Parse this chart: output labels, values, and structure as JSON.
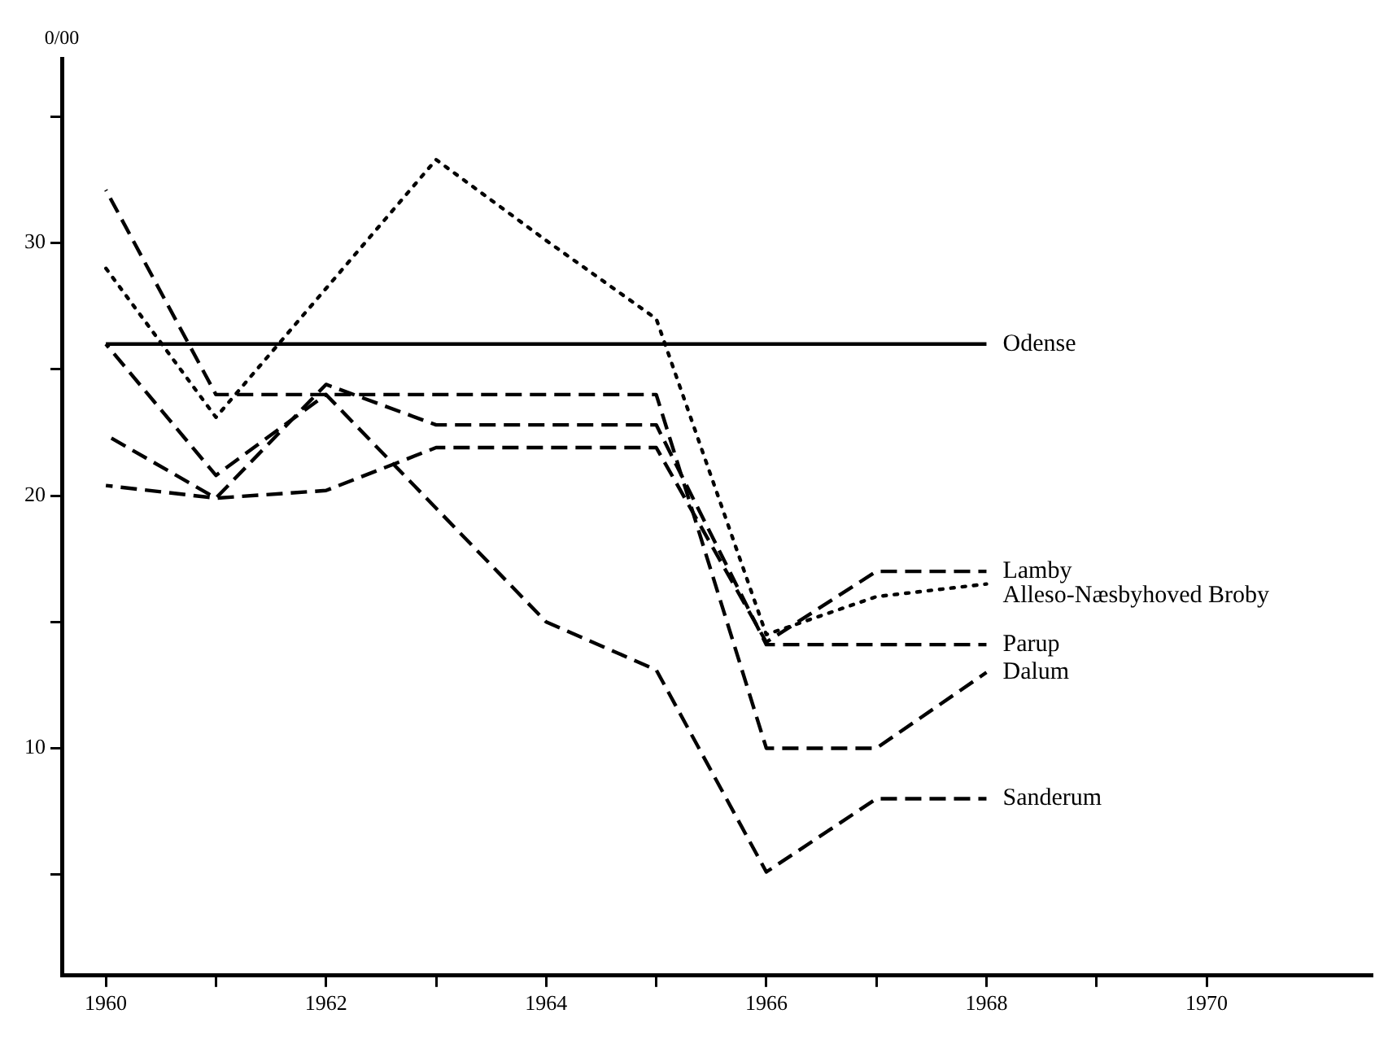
{
  "chart_data": {
    "type": "line",
    "ylabel": "0/00",
    "xlim": [
      1959.6,
      1971.5
    ],
    "ylim": [
      1,
      37.3
    ],
    "xticks": [
      1960,
      {
        "value": 1961,
        "label": null
      },
      1962,
      {
        "value": 1963,
        "label": null
      },
      1964,
      {
        "value": 1965,
        "label": null
      },
      1966,
      {
        "value": 1967,
        "label": null
      },
      1968,
      {
        "value": 1969,
        "label": null
      },
      1970
    ],
    "yticks": [
      {
        "value": 5,
        "label": null
      },
      10,
      {
        "value": 15,
        "label": null
      },
      20,
      {
        "value": 25,
        "label": null
      },
      30,
      {
        "value": 35,
        "label": null
      }
    ],
    "grid": false,
    "legend": false,
    "marker": "none",
    "series": [
      {
        "name": "Odense",
        "color": "#000000",
        "line_style": "solid",
        "x": [
          1960,
          1968
        ],
        "values": [
          26,
          26
        ]
      },
      {
        "name": "Lamby",
        "color": "#000000",
        "line_style": "dashed",
        "x": [
          1960,
          1961,
          1962,
          1963,
          1964,
          1965,
          1966,
          1967,
          1968
        ],
        "values": [
          20.4,
          19.9,
          20.2,
          21.9,
          21.9,
          21.9,
          14.2,
          17,
          17
        ]
      },
      {
        "name": "Alleso-Næsbyhoved Broby",
        "color": "#000000",
        "line_style": "dotted",
        "x": [
          1960,
          1961,
          1962,
          1963,
          1964,
          1965,
          1966,
          1967,
          1968
        ],
        "values": [
          29,
          23.1,
          28.2,
          33.3,
          30.1,
          27,
          14.5,
          16,
          16.5
        ]
      },
      {
        "name": "Parup",
        "color": "#000000",
        "line_style": "dashed",
        "x": [
          1960,
          1961,
          1962,
          1963,
          1964,
          1965,
          1966,
          1967,
          1968
        ],
        "values": [
          22.4,
          19.9,
          24.4,
          22.8,
          22.8,
          22.8,
          14.1,
          14.1,
          14.1
        ]
      },
      {
        "name": "Dalum",
        "color": "#000000",
        "line_style": "dashed",
        "x": [
          1960,
          1961,
          1962,
          1963,
          1964,
          1965,
          1966,
          1967,
          1968
        ],
        "values": [
          32.1,
          24,
          24,
          24,
          24,
          24,
          10,
          10,
          13
        ]
      },
      {
        "name": "Sanderum",
        "color": "#000000",
        "line_style": "dashed",
        "x": [
          1960,
          1961,
          1962,
          1963,
          1964,
          1965,
          1966,
          1967,
          1968
        ],
        "values": [
          26,
          20.8,
          24,
          19.5,
          15,
          13.1,
          5.1,
          8,
          8
        ]
      }
    ]
  }
}
